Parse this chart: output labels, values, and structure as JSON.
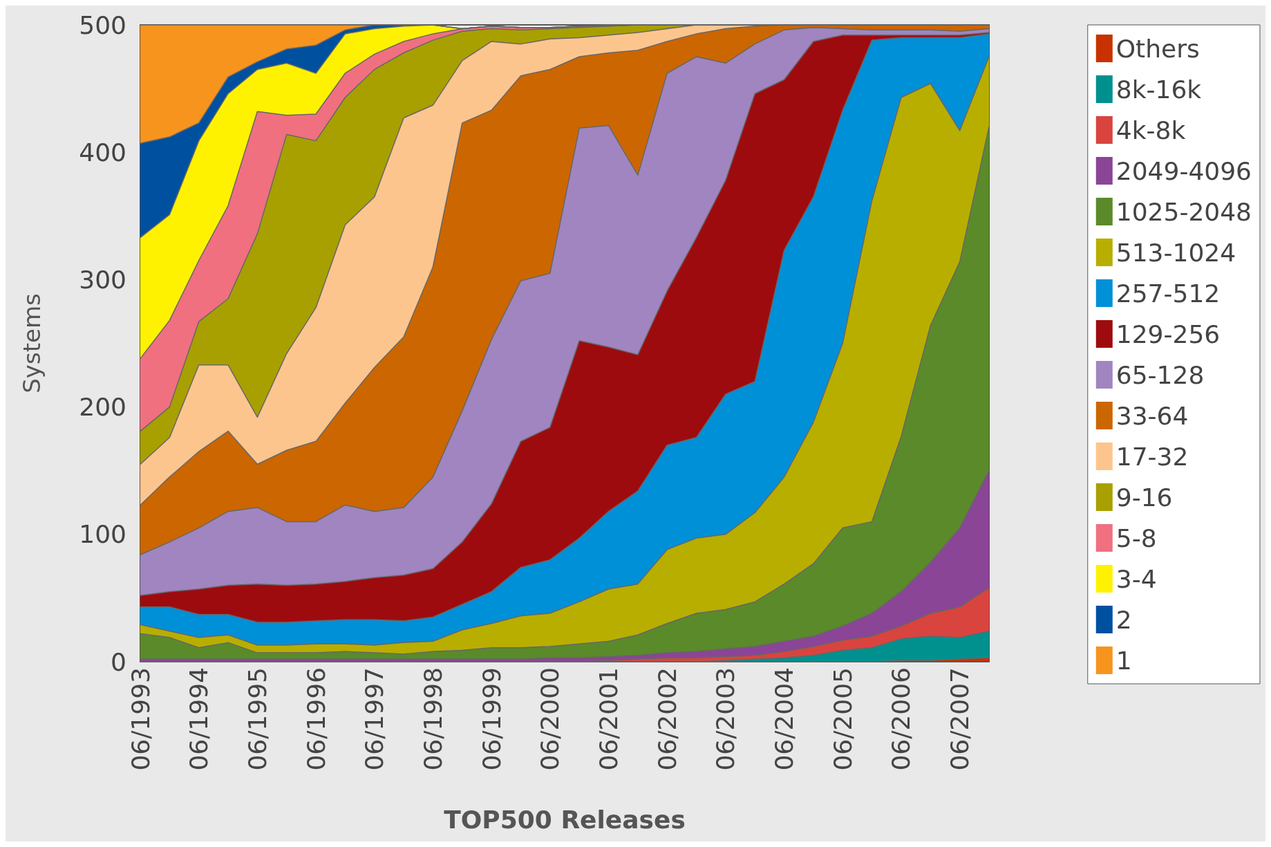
{
  "chart_data": {
    "type": "area",
    "stacked": true,
    "xlabel": "TOP500 Releases",
    "ylabel": "Systems",
    "categories": [
      "06/1993",
      null,
      "06/1994",
      null,
      "06/1995",
      null,
      "06/1996",
      null,
      "06/1997",
      null,
      "06/1998",
      null,
      "06/1999",
      null,
      "06/2000",
      null,
      "06/2001",
      null,
      "06/2002",
      null,
      "06/2003",
      null,
      "06/2004",
      null,
      "06/2005",
      null,
      "06/2006",
      null,
      "06/2007",
      null
    ],
    "ylim": [
      0,
      500
    ],
    "yticks": [
      0,
      100,
      200,
      300,
      400,
      500
    ],
    "legend": "right",
    "series": [
      {
        "name": "Others",
        "color": "#c83200",
        "values": [
          0,
          0,
          0,
          0,
          0,
          0,
          0,
          0,
          0,
          0,
          0,
          0,
          0,
          0,
          0,
          0,
          0,
          0,
          0,
          0,
          0,
          0,
          0,
          0,
          0,
          0,
          1,
          1,
          2,
          3
        ]
      },
      {
        "name": "8k-16k",
        "color": "#00918f",
        "values": [
          0,
          0,
          0,
          0,
          0,
          0,
          0,
          0,
          0,
          0,
          0,
          0,
          0,
          0,
          0,
          0,
          0,
          0,
          0,
          0,
          1,
          2,
          3,
          5,
          9,
          11,
          17,
          19,
          17,
          21
        ]
      },
      {
        "name": "4k-8k",
        "color": "#d9443f",
        "values": [
          0,
          0,
          0,
          0,
          0,
          0,
          0,
          0,
          0,
          0,
          0,
          0,
          0,
          0,
          0,
          0,
          1,
          2,
          3,
          3,
          3,
          3,
          5,
          7,
          8,
          9,
          10,
          18,
          24,
          34
        ]
      },
      {
        "name": "2049-4096",
        "color": "#8b4596",
        "values": [
          2,
          2,
          2,
          2,
          2,
          2,
          2,
          2,
          2,
          2,
          2,
          2,
          2,
          2,
          3,
          3,
          3,
          3,
          4,
          5,
          6,
          7,
          8,
          8,
          11,
          18,
          27,
          40,
          62,
          92
        ]
      },
      {
        "name": "1025-2048",
        "color": "#5a8a2a",
        "values": [
          20,
          17,
          9,
          13,
          5,
          5,
          5,
          6,
          5,
          4,
          6,
          7,
          9,
          9,
          9,
          11,
          12,
          16,
          23,
          30,
          31,
          35,
          45,
          57,
          77,
          72,
          122,
          186,
          209,
          270
        ]
      },
      {
        "name": "513-1024",
        "color": "#b8ae00",
        "values": [
          7,
          5,
          8,
          6,
          6,
          6,
          7,
          6,
          6,
          9,
          8,
          16,
          19,
          25,
          26,
          33,
          41,
          40,
          58,
          59,
          59,
          70,
          84,
          111,
          145,
          252,
          266,
          190,
          103,
          55
        ]
      },
      {
        "name": "257-512",
        "color": "#0090d8",
        "values": [
          14,
          19,
          18,
          16,
          18,
          18,
          18,
          19,
          20,
          17,
          19,
          20,
          25,
          38,
          42,
          50,
          61,
          73,
          82,
          79,
          110,
          103,
          178,
          177,
          183,
          126,
          47,
          36,
          73,
          18
        ]
      },
      {
        "name": "129-256",
        "color": "#9e0b0e",
        "values": [
          9,
          12,
          20,
          23,
          30,
          29,
          29,
          30,
          33,
          36,
          38,
          49,
          69,
          99,
          104,
          155,
          129,
          107,
          121,
          157,
          168,
          226,
          134,
          122,
          59,
          4,
          2,
          2,
          2,
          1
        ]
      },
      {
        "name": "65-128",
        "color": "#a085c0",
        "values": [
          32,
          39,
          48,
          58,
          60,
          50,
          49,
          60,
          52,
          53,
          72,
          103,
          129,
          126,
          121,
          167,
          174,
          141,
          171,
          142,
          92,
          39,
          39,
          11,
          5,
          4,
          4,
          4,
          3,
          3
        ]
      },
      {
        "name": "33-64",
        "color": "#cc6600",
        "values": [
          39,
          51,
          60,
          63,
          34,
          56,
          63,
          80,
          113,
          134,
          165,
          226,
          180,
          161,
          160,
          56,
          57,
          98,
          25,
          18,
          27,
          14,
          4,
          2,
          3,
          4,
          4,
          4,
          5,
          3
        ]
      },
      {
        "name": "17-32",
        "color": "#fdc58e",
        "values": [
          32,
          31,
          68,
          52,
          37,
          76,
          105,
          140,
          134,
          172,
          127,
          49,
          54,
          25,
          24,
          15,
          14,
          14,
          10,
          7,
          3,
          1,
          0,
          0,
          0,
          0,
          0,
          0,
          0,
          0
        ]
      },
      {
        "name": "9-16",
        "color": "#a8a000",
        "values": [
          26,
          24,
          34,
          52,
          144,
          172,
          131,
          100,
          100,
          51,
          51,
          23,
          10,
          11,
          8,
          8,
          7,
          6,
          3,
          0,
          0,
          0,
          0,
          0,
          0,
          0,
          0,
          0,
          0,
          0
        ]
      },
      {
        "name": "5-8",
        "color": "#f07080",
        "values": [
          57,
          68,
          48,
          73,
          96,
          15,
          21,
          19,
          12,
          9,
          5,
          2,
          2,
          2,
          1,
          1,
          0,
          0,
          0,
          0,
          0,
          0,
          0,
          0,
          0,
          0,
          0,
          0,
          0,
          0
        ]
      },
      {
        "name": "3-4",
        "color": "#fff200",
        "values": [
          95,
          83,
          94,
          88,
          33,
          41,
          32,
          31,
          20,
          12,
          7,
          0,
          0,
          0,
          0,
          0,
          1,
          0,
          0,
          0,
          0,
          0,
          0,
          0,
          0,
          0,
          0,
          0,
          0,
          0
        ]
      },
      {
        "name": "2",
        "color": "#0050a0",
        "values": [
          74,
          61,
          14,
          13,
          6,
          11,
          22,
          3,
          3,
          1,
          0,
          0,
          0,
          0,
          0,
          0,
          0,
          0,
          0,
          0,
          0,
          0,
          0,
          0,
          0,
          0,
          0,
          0,
          0,
          0
        ]
      },
      {
        "name": "1",
        "color": "#f7941d",
        "values": [
          93,
          88,
          77,
          41,
          29,
          19,
          16,
          4,
          0,
          0,
          0,
          0,
          0,
          0,
          0,
          0,
          0,
          0,
          0,
          0,
          0,
          0,
          0,
          0,
          0,
          0,
          0,
          0,
          0,
          0
        ]
      }
    ]
  }
}
